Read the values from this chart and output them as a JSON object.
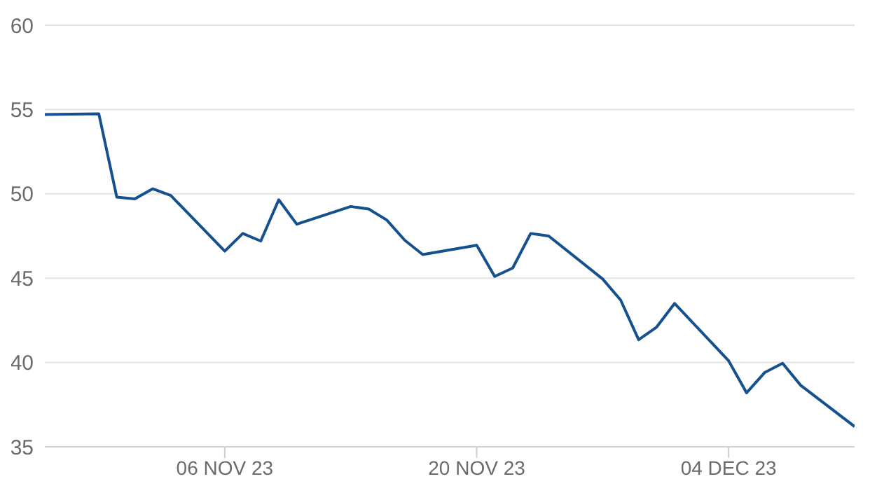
{
  "chart_data": {
    "type": "line",
    "x": [
      "2023-10-27",
      "2023-10-30",
      "2023-10-31",
      "2023-11-01",
      "2023-11-02",
      "2023-11-03",
      "2023-11-06",
      "2023-11-07",
      "2023-11-08",
      "2023-11-09",
      "2023-11-10",
      "2023-11-13",
      "2023-11-14",
      "2023-11-15",
      "2023-11-16",
      "2023-11-17",
      "2023-11-20",
      "2023-11-21",
      "2023-11-22",
      "2023-11-23",
      "2023-11-24",
      "2023-11-27",
      "2023-11-28",
      "2023-11-29",
      "2023-11-30",
      "2023-12-01",
      "2023-12-04",
      "2023-12-05",
      "2023-12-06",
      "2023-12-07",
      "2023-12-08",
      "2023-12-11"
    ],
    "series": [
      {
        "color": "#15508f",
        "values": [
          54.7,
          54.75,
          49.8,
          49.7,
          50.3,
          49.9,
          46.6,
          47.65,
          47.2,
          49.65,
          48.2,
          49.25,
          49.1,
          48.45,
          47.25,
          46.4,
          46.95,
          45.1,
          45.6,
          47.65,
          47.5,
          44.95,
          43.7,
          41.35,
          42.1,
          43.5,
          40.1,
          38.2,
          39.4,
          39.95,
          38.65,
          36.2
        ]
      }
    ],
    "xlim": [
      "2023-10-27",
      "2023-12-11"
    ],
    "xticks": [
      {
        "value": "2023-11-06",
        "label": "06 NOV 23"
      },
      {
        "value": "2023-11-20",
        "label": "20 NOV 23"
      },
      {
        "value": "2023-12-04",
        "label": "04 DEC 23"
      }
    ],
    "ylim": [
      35,
      60
    ],
    "yticks": [
      35,
      40,
      45,
      50,
      55,
      60
    ],
    "grid": "y",
    "marker": "none",
    "line_style": "solid",
    "legend": false
  }
}
